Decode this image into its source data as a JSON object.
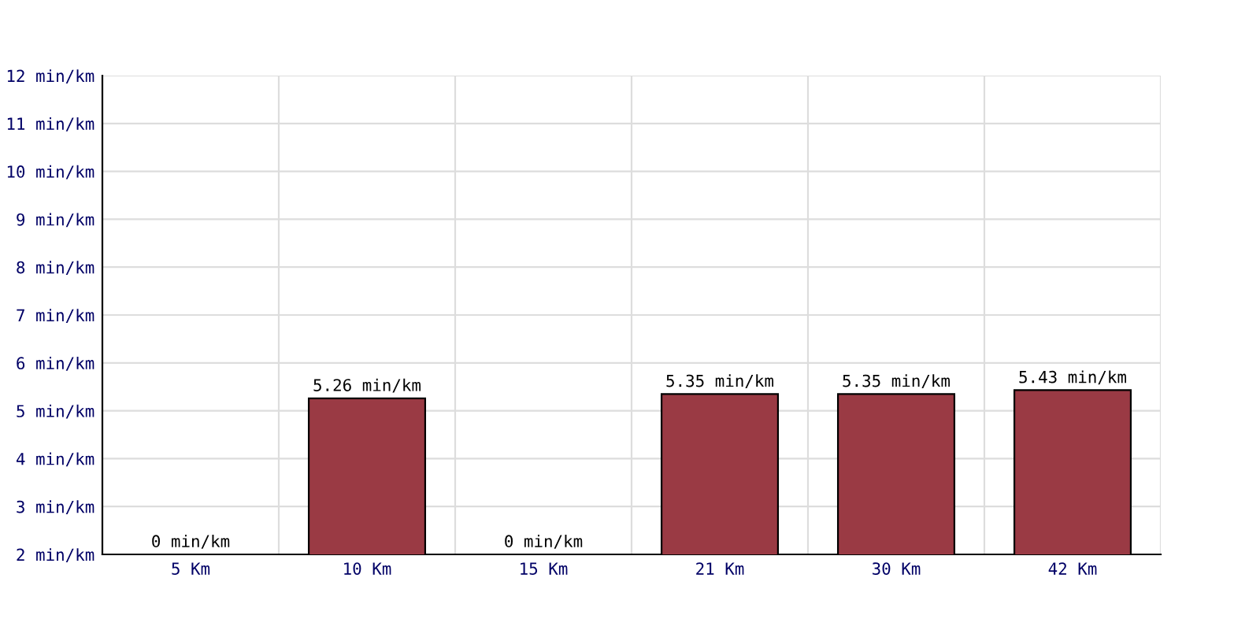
{
  "chart_data": {
    "type": "bar",
    "categories": [
      "5 Km",
      "10 Km",
      "15 Km",
      "21 Km",
      "30 Km",
      "42 Km"
    ],
    "values": [
      null,
      5.26,
      null,
      5.35,
      5.35,
      5.43
    ],
    "color": "#9a3a44",
    "ylim": [
      2,
      12
    ],
    "yticks": [
      {
        "value": 2,
        "label": "2 min/km"
      },
      {
        "value": 3,
        "label": "3 min/km"
      },
      {
        "value": 4,
        "label": "4 min/km"
      },
      {
        "value": 5,
        "label": "5 min/km"
      },
      {
        "value": 6,
        "label": "6 min/km"
      },
      {
        "value": 7,
        "label": "7 min/km"
      },
      {
        "value": 8,
        "label": "8 min/km"
      },
      {
        "value": 9,
        "label": "9 min/km"
      },
      {
        "value": 10,
        "label": "10 min/km"
      },
      {
        "value": 11,
        "label": "11 min/km"
      },
      {
        "value": 12,
        "label": "12 min/km"
      }
    ],
    "value_labels": [
      "0 min/km",
      "5.26 min/km",
      "0 min/km",
      "5.35 min/km",
      "5.35 min/km",
      "5.43 min/km"
    ],
    "grid": true
  }
}
